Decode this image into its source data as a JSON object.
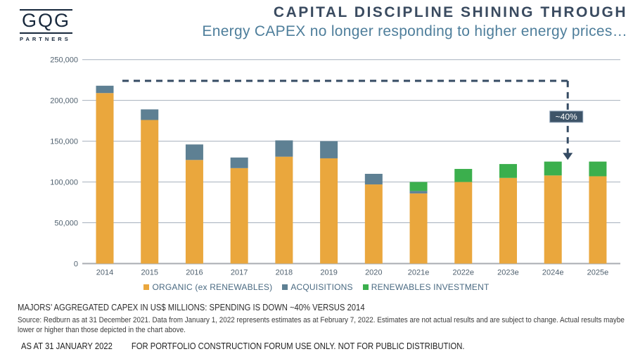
{
  "logo": {
    "name": "GQG",
    "subname": "PARTNERS"
  },
  "header": {
    "title": "CAPITAL DISCIPLINE SHINING THROUGH",
    "subtitle": "Energy CAPEX no longer responding to higher energy prices…"
  },
  "chart_data": {
    "type": "bar",
    "stacked": true,
    "unit": "US$ millions",
    "categories": [
      "2014",
      "2015",
      "2016",
      "2017",
      "2018",
      "2019",
      "2020",
      "2021e",
      "2022e",
      "2023e",
      "2024e",
      "2025e"
    ],
    "series": [
      {
        "name": "ORGANIC (ex RENEWABLES)",
        "color": "#EAA73D",
        "values": [
          209000,
          176000,
          127000,
          117000,
          131000,
          129000,
          97000,
          86000,
          100000,
          105000,
          108000,
          107000
        ]
      },
      {
        "name": "ACQUISITIONS",
        "color": "#5E8093",
        "values": [
          9000,
          13000,
          19000,
          13000,
          20000,
          21000,
          13000,
          3000,
          0,
          0,
          0,
          0
        ]
      },
      {
        "name": "RENEWABLES INVESTMENT",
        "color": "#3BAF4D",
        "values": [
          0,
          0,
          0,
          0,
          0,
          0,
          0,
          11000,
          16000,
          17000,
          17000,
          18000
        ]
      }
    ],
    "ylim": [
      0,
      250000
    ],
    "ytick_step": 50000,
    "grid": true,
    "legend_position": "bottom",
    "annotation": {
      "label": "~40%",
      "line_value": 224000,
      "arrow_end_value": 127000,
      "drop_at_category": "2024e"
    }
  },
  "caption": "MAJORS’ AGGREGATED CAPEX IN US$ MILLIONS: SPENDING IS DOWN ~40% VERSUS 2014",
  "source": "Source: Redburn as at 31 December 2021. Data from January 1, 2022 represents estimates as at February 7, 2022. Estimates are not actual results and are subject to change. Actual results maybe lower or higher than those depicted in the chart above.",
  "footer": {
    "as_at": "AS AT 31 JANUARY 2022",
    "disclaimer": "FOR PORTFOLIO CONSTRUCTION FORUM USE ONLY. NOT FOR PUBLIC DISTRIBUTION."
  },
  "colors": {
    "title_navy": "#3A4B60",
    "subtitle_steel": "#4E7E9B",
    "annotation_navy": "#354B63",
    "annotation_box_fill": "#3E5468",
    "annotation_box_border": "#8FA3B8",
    "gridline": "#A6B0BD",
    "axis": "#A9ADB2"
  }
}
